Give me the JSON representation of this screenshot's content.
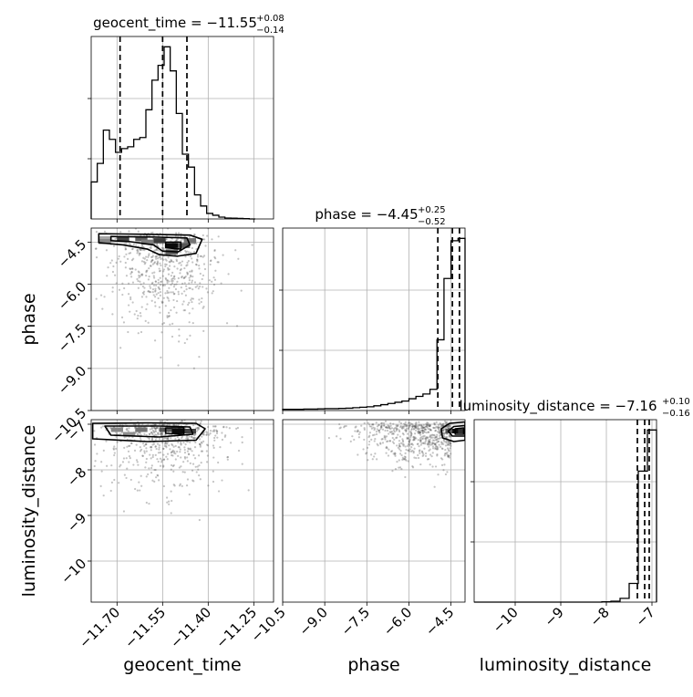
{
  "chart_data": {
    "type": "corner",
    "parameters": [
      {
        "key": "geocent_time",
        "label": "geocent_time",
        "title_main": "geocent_time = −11.55",
        "title_sup": "+0.08",
        "title_sub": "−0.14",
        "range": [
          -11.785,
          -11.185
        ],
        "ticks": [
          -11.7,
          -11.55,
          -11.4,
          -11.25
        ],
        "tick_labels": [
          "−11.70",
          "−11.55",
          "−11.40",
          "−11.25"
        ],
        "quantiles": [
          -11.69,
          -11.55,
          -11.47
        ],
        "hist_edges": [
          -11.785,
          -11.765,
          -11.745,
          -11.725,
          -11.705,
          -11.685,
          -11.665,
          -11.645,
          -11.625,
          -11.605,
          -11.585,
          -11.565,
          -11.545,
          -11.525,
          -11.505,
          -11.485,
          -11.465,
          -11.445,
          -11.425,
          -11.405,
          -11.385,
          -11.365,
          -11.345,
          -11.325,
          -11.305,
          -11.285,
          -11.265,
          -11.245
        ],
        "hist_counts": [
          0.2,
          0.3,
          0.48,
          0.43,
          0.36,
          0.38,
          0.39,
          0.43,
          0.44,
          0.59,
          0.75,
          0.83,
          0.93,
          0.8,
          0.57,
          0.35,
          0.28,
          0.13,
          0.07,
          0.03,
          0.02,
          0.01,
          0.005,
          0.004,
          0.003,
          0.002,
          0.0
        ]
      },
      {
        "key": "phase",
        "label": "phase",
        "title_main": "phase = −4.45",
        "title_sup": "+0.25",
        "title_sub": "−0.52",
        "range": [
          -10.5,
          -4.0
        ],
        "ticks": [
          -10.5,
          -9.0,
          -7.5,
          -6.0,
          -4.5
        ],
        "tick_labels": [
          "−10.5",
          "−9.0",
          "−7.5",
          "−6.0",
          "−4.5"
        ],
        "quantiles": [
          -4.97,
          -4.45,
          -4.2
        ],
        "hist_edges": [
          -10.5,
          -10.25,
          -10.0,
          -9.75,
          -9.5,
          -9.25,
          -9.0,
          -8.75,
          -8.5,
          -8.25,
          -8.0,
          -7.75,
          -7.5,
          -7.25,
          -7.0,
          -6.75,
          -6.5,
          -6.25,
          -6.0,
          -5.75,
          -5.5,
          -5.25,
          -5.0,
          -4.75,
          -4.5,
          -4.25,
          -4.0
        ],
        "hist_counts": [
          0.005,
          0.005,
          0.005,
          0.006,
          0.006,
          0.007,
          0.008,
          0.008,
          0.009,
          0.01,
          0.012,
          0.014,
          0.016,
          0.02,
          0.025,
          0.03,
          0.035,
          0.04,
          0.05,
          0.06,
          0.07,
          0.09,
          0.3,
          0.56,
          0.72,
          0.73
        ]
      },
      {
        "key": "luminosity_distance",
        "label": "luminosity_distance",
        "title_main": "luminosity_distance = −7.16",
        "title_sup": "+0.10",
        "title_sub": "−0.16",
        "range": [
          -10.9,
          -6.9
        ],
        "ticks": [
          -10,
          -9,
          -8,
          -7
        ],
        "tick_labels": [
          "−10",
          "−9",
          "−8",
          "−7"
        ],
        "quantiles": [
          -7.32,
          -7.16,
          -7.06
        ],
        "hist_edges": [
          -10.9,
          -10.7,
          -10.5,
          -10.3,
          -10.1,
          -9.9,
          -9.7,
          -9.5,
          -9.3,
          -9.1,
          -8.9,
          -8.7,
          -8.5,
          -8.3,
          -8.1,
          -7.9,
          -7.7,
          -7.5,
          -7.3,
          -7.1,
          -6.9
        ],
        "hist_counts": [
          0.0,
          0.0,
          0.0,
          0.0,
          0.0,
          0.0,
          0.0,
          0.0,
          0.0,
          0.0,
          0.0,
          0.0,
          0.0,
          0.0,
          0.002,
          0.005,
          0.02,
          0.1,
          0.7,
          0.92
        ]
      }
    ],
    "phase_axis_ticks": [
      -4.5,
      -6.0,
      -7.5,
      -9.0,
      -10.5
    ],
    "phase_axis_tick_labels": [
      "−4.5",
      "−6.0",
      "−7.5",
      "−9.0",
      "−10.5"
    ],
    "luminosity_axis_ticks": [
      -7,
      -8,
      -9,
      -10
    ],
    "luminosity_axis_tick_labels": [
      "−7",
      "−8",
      "−9",
      "−10"
    ],
    "panels_2d": [
      {
        "x": "geocent_time",
        "y": "phase",
        "density_cells": [
          {
            "x": -11.74,
            "y": -4.38,
            "w": 0.18
          },
          {
            "x": -11.68,
            "y": -4.38,
            "w": 0.7
          },
          {
            "x": -11.62,
            "y": -4.38,
            "w": 0.55
          },
          {
            "x": -11.56,
            "y": -4.45,
            "w": 0.75
          },
          {
            "x": -11.52,
            "y": -4.62,
            "w": 1.0
          },
          {
            "x": -11.48,
            "y": -4.62,
            "w": 0.6
          },
          {
            "x": -11.46,
            "y": -4.45,
            "w": 0.45
          },
          {
            "x": -11.6,
            "y": -4.5,
            "w": 0.4
          },
          {
            "x": -11.74,
            "y": -4.48,
            "w": 0.35
          },
          {
            "x": -11.52,
            "y": -4.85,
            "w": 0.55
          }
        ],
        "contours": [
          [
            [
              -11.76,
              -4.2
            ],
            [
              -11.6,
              -4.22
            ],
            [
              -11.46,
              -4.25
            ],
            [
              -11.42,
              -4.4
            ],
            [
              -11.44,
              -4.9
            ],
            [
              -11.5,
              -5.0
            ],
            [
              -11.56,
              -4.95
            ],
            [
              -11.6,
              -4.75
            ],
            [
              -11.68,
              -4.6
            ],
            [
              -11.76,
              -4.52
            ]
          ],
          [
            [
              -11.72,
              -4.3
            ],
            [
              -11.58,
              -4.32
            ],
            [
              -11.47,
              -4.35
            ],
            [
              -11.46,
              -4.6
            ],
            [
              -11.5,
              -4.85
            ],
            [
              -11.55,
              -4.82
            ],
            [
              -11.58,
              -4.6
            ],
            [
              -11.66,
              -4.48
            ],
            [
              -11.72,
              -4.45
            ]
          ],
          [
            [
              -11.54,
              -4.5
            ],
            [
              -11.49,
              -4.5
            ],
            [
              -11.49,
              -4.75
            ],
            [
              -11.54,
              -4.7
            ]
          ]
        ]
      },
      {
        "x": "geocent_time",
        "y": "luminosity_distance",
        "density_cells": [
          {
            "x": -11.7,
            "y": -7.12,
            "w": 0.35
          },
          {
            "x": -11.62,
            "y": -7.12,
            "w": 0.45
          },
          {
            "x": -11.54,
            "y": -7.12,
            "w": 0.6
          },
          {
            "x": -11.5,
            "y": -7.15,
            "w": 1.0
          },
          {
            "x": -11.46,
            "y": -7.15,
            "w": 0.7
          },
          {
            "x": -11.66,
            "y": -7.22,
            "w": 0.3
          }
        ],
        "contours": [
          [
            [
              -11.78,
              -6.98
            ],
            [
              -11.6,
              -6.97
            ],
            [
              -11.44,
              -6.98
            ],
            [
              -11.41,
              -7.1
            ],
            [
              -11.44,
              -7.35
            ],
            [
              -11.6,
              -7.38
            ],
            [
              -11.78,
              -7.32
            ]
          ],
          [
            [
              -11.74,
              -7.04
            ],
            [
              -11.56,
              -7.04
            ],
            [
              -11.46,
              -7.06
            ],
            [
              -11.45,
              -7.22
            ],
            [
              -11.56,
              -7.28
            ],
            [
              -11.72,
              -7.24
            ]
          ],
          [
            [
              -11.54,
              -7.08
            ],
            [
              -11.48,
              -7.08
            ],
            [
              -11.48,
              -7.22
            ],
            [
              -11.54,
              -7.2
            ]
          ]
        ]
      },
      {
        "x": "phase",
        "y": "luminosity_distance",
        "density_cells": [
          {
            "x": -4.55,
            "y": -7.15,
            "w": 0.6
          },
          {
            "x": -4.3,
            "y": -7.15,
            "w": 1.0
          },
          {
            "x": -4.1,
            "y": -7.15,
            "w": 0.8
          }
        ],
        "contours": [
          [
            [
              -4.0,
              -6.95
            ],
            [
              -4.55,
              -6.98
            ],
            [
              -4.85,
              -7.1
            ],
            [
              -4.8,
              -7.3
            ],
            [
              -4.4,
              -7.38
            ],
            [
              -4.0,
              -7.35
            ]
          ],
          [
            [
              -4.0,
              -7.03
            ],
            [
              -4.4,
              -7.05
            ],
            [
              -4.6,
              -7.15
            ],
            [
              -4.45,
              -7.26
            ],
            [
              -4.0,
              -7.26
            ]
          ],
          [
            [
              -4.05,
              -7.08
            ],
            [
              -4.35,
              -7.1
            ],
            [
              -4.35,
              -7.22
            ],
            [
              -4.05,
              -7.22
            ]
          ]
        ]
      }
    ]
  }
}
